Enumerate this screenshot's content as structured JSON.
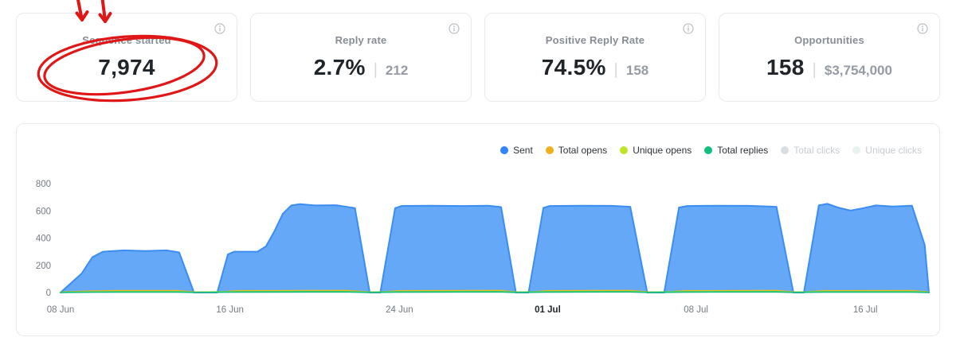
{
  "ui": {
    "separator": "|"
  },
  "annotation": {
    "color": "#E01717",
    "shapes": [
      "down-arrow",
      "down-arrow",
      "hand-drawn-ellipse"
    ]
  },
  "cards": [
    {
      "label": "Sequence started",
      "value": "7,974",
      "secondary": ""
    },
    {
      "label": "Reply rate",
      "value": "2.7%",
      "secondary": "212"
    },
    {
      "label": "Positive Reply Rate",
      "value": "74.5%",
      "secondary": "158"
    },
    {
      "label": "Opportunities",
      "value": "158",
      "secondary": "$3,754,000"
    }
  ],
  "chart_data": {
    "type": "area",
    "title": "",
    "xlabel": "",
    "ylabel": "",
    "ylim": [
      0,
      800
    ],
    "y_ticks": [
      0,
      200,
      400,
      600,
      800
    ],
    "xmax": 41,
    "grid": false,
    "legend_position": "top-right",
    "x_ticks": [
      {
        "label": "08 Jun",
        "day": 0,
        "bold": false
      },
      {
        "label": "16 Jun",
        "day": 8,
        "bold": false
      },
      {
        "label": "24 Jun",
        "day": 16,
        "bold": false
      },
      {
        "label": "01 Jul",
        "day": 23,
        "bold": true
      },
      {
        "label": "08 Jul",
        "day": 30,
        "bold": false
      },
      {
        "label": "16 Jul",
        "day": 38,
        "bold": false
      }
    ],
    "legend": [
      {
        "name": "Sent",
        "color": "#2E86F7",
        "enabled": true
      },
      {
        "name": "Total opens",
        "color": "#F2AF1D",
        "enabled": true
      },
      {
        "name": "Unique opens",
        "color": "#BFE52B",
        "enabled": true
      },
      {
        "name": "Total replies",
        "color": "#13BF7C",
        "enabled": true
      },
      {
        "name": "Total clicks",
        "color": "#D9DEE3",
        "enabled": false
      },
      {
        "name": "Unique clicks",
        "color": "#E8F3EF",
        "enabled": false
      }
    ],
    "series": [
      {
        "name": "Sent",
        "color": "#3B8DF2",
        "fill": "#57A1F6",
        "width": 2,
        "points": [
          [
            0,
            0
          ],
          [
            0.5,
            70
          ],
          [
            1,
            140
          ],
          [
            1.5,
            260
          ],
          [
            2,
            300
          ],
          [
            3,
            310
          ],
          [
            4,
            305
          ],
          [
            5,
            310
          ],
          [
            5.6,
            295
          ],
          [
            6.3,
            0
          ],
          [
            7.4,
            0
          ],
          [
            7.9,
            280
          ],
          [
            8.2,
            300
          ],
          [
            9.3,
            300
          ],
          [
            9.7,
            340
          ],
          [
            10.1,
            450
          ],
          [
            10.5,
            580
          ],
          [
            10.9,
            640
          ],
          [
            11.3,
            650
          ],
          [
            12,
            640
          ],
          [
            13,
            642
          ],
          [
            13.9,
            620
          ],
          [
            14.6,
            0
          ],
          [
            15.1,
            0
          ],
          [
            15.8,
            620
          ],
          [
            16.1,
            636
          ],
          [
            17.5,
            638
          ],
          [
            19,
            636
          ],
          [
            20.2,
            638
          ],
          [
            20.8,
            628
          ],
          [
            21.5,
            0
          ],
          [
            22.1,
            0
          ],
          [
            22.8,
            622
          ],
          [
            23.1,
            636
          ],
          [
            24.5,
            638
          ],
          [
            26,
            637
          ],
          [
            26.9,
            630
          ],
          [
            27.7,
            0
          ],
          [
            28.5,
            0
          ],
          [
            29.2,
            625
          ],
          [
            29.6,
            636
          ],
          [
            31,
            638
          ],
          [
            32.5,
            637
          ],
          [
            33.8,
            630
          ],
          [
            34.6,
            0
          ],
          [
            35.1,
            0
          ],
          [
            35.8,
            640
          ],
          [
            36.2,
            652
          ],
          [
            36.7,
            625
          ],
          [
            37.3,
            602
          ],
          [
            37.9,
            620
          ],
          [
            38.5,
            640
          ],
          [
            39.3,
            632
          ],
          [
            40.2,
            638
          ],
          [
            40.8,
            350
          ],
          [
            41,
            0
          ]
        ]
      },
      {
        "name": "Total opens",
        "color": "#F2AF1D",
        "fill": null,
        "width": 2,
        "points": [
          [
            0,
            3
          ],
          [
            1.5,
            10
          ],
          [
            2.5,
            13
          ],
          [
            5.5,
            13
          ],
          [
            6.4,
            3
          ],
          [
            7.5,
            3
          ],
          [
            8.3,
            12
          ],
          [
            13.5,
            14
          ],
          [
            14.6,
            3
          ],
          [
            15.2,
            3
          ],
          [
            16,
            12
          ],
          [
            20.8,
            14
          ],
          [
            21.5,
            3
          ],
          [
            22.2,
            3
          ],
          [
            23,
            12
          ],
          [
            26.9,
            14
          ],
          [
            27.8,
            3
          ],
          [
            28.6,
            3
          ],
          [
            29.5,
            12
          ],
          [
            33.8,
            14
          ],
          [
            34.7,
            3
          ],
          [
            35.2,
            3
          ],
          [
            36,
            12
          ],
          [
            40.2,
            13
          ],
          [
            41,
            3
          ]
        ]
      },
      {
        "name": "Unique opens",
        "color": "#BFE52B",
        "fill": null,
        "width": 1.8,
        "points": [
          [
            0,
            2
          ],
          [
            2.5,
            8
          ],
          [
            5.5,
            8
          ],
          [
            6.4,
            2
          ],
          [
            8.3,
            8
          ],
          [
            13.5,
            9
          ],
          [
            14.6,
            2
          ],
          [
            16,
            8
          ],
          [
            20.8,
            9
          ],
          [
            21.5,
            2
          ],
          [
            23,
            8
          ],
          [
            26.9,
            9
          ],
          [
            27.8,
            2
          ],
          [
            29.5,
            8
          ],
          [
            33.8,
            9
          ],
          [
            34.7,
            2
          ],
          [
            36,
            8
          ],
          [
            40.2,
            8
          ],
          [
            41,
            2
          ]
        ]
      },
      {
        "name": "Total replies",
        "color": "#13BF7C",
        "fill": null,
        "width": 1.8,
        "points": [
          [
            0,
            1
          ],
          [
            2.5,
            4
          ],
          [
            5.5,
            4
          ],
          [
            6.4,
            1
          ],
          [
            8.3,
            4
          ],
          [
            13.5,
            5
          ],
          [
            14.6,
            1
          ],
          [
            16,
            4
          ],
          [
            20.8,
            5
          ],
          [
            21.5,
            1
          ],
          [
            23,
            4
          ],
          [
            26.9,
            5
          ],
          [
            27.8,
            1
          ],
          [
            29.5,
            4
          ],
          [
            33.8,
            5
          ],
          [
            34.7,
            1
          ],
          [
            36,
            4
          ],
          [
            40.2,
            4
          ],
          [
            41,
            1
          ]
        ]
      }
    ]
  }
}
